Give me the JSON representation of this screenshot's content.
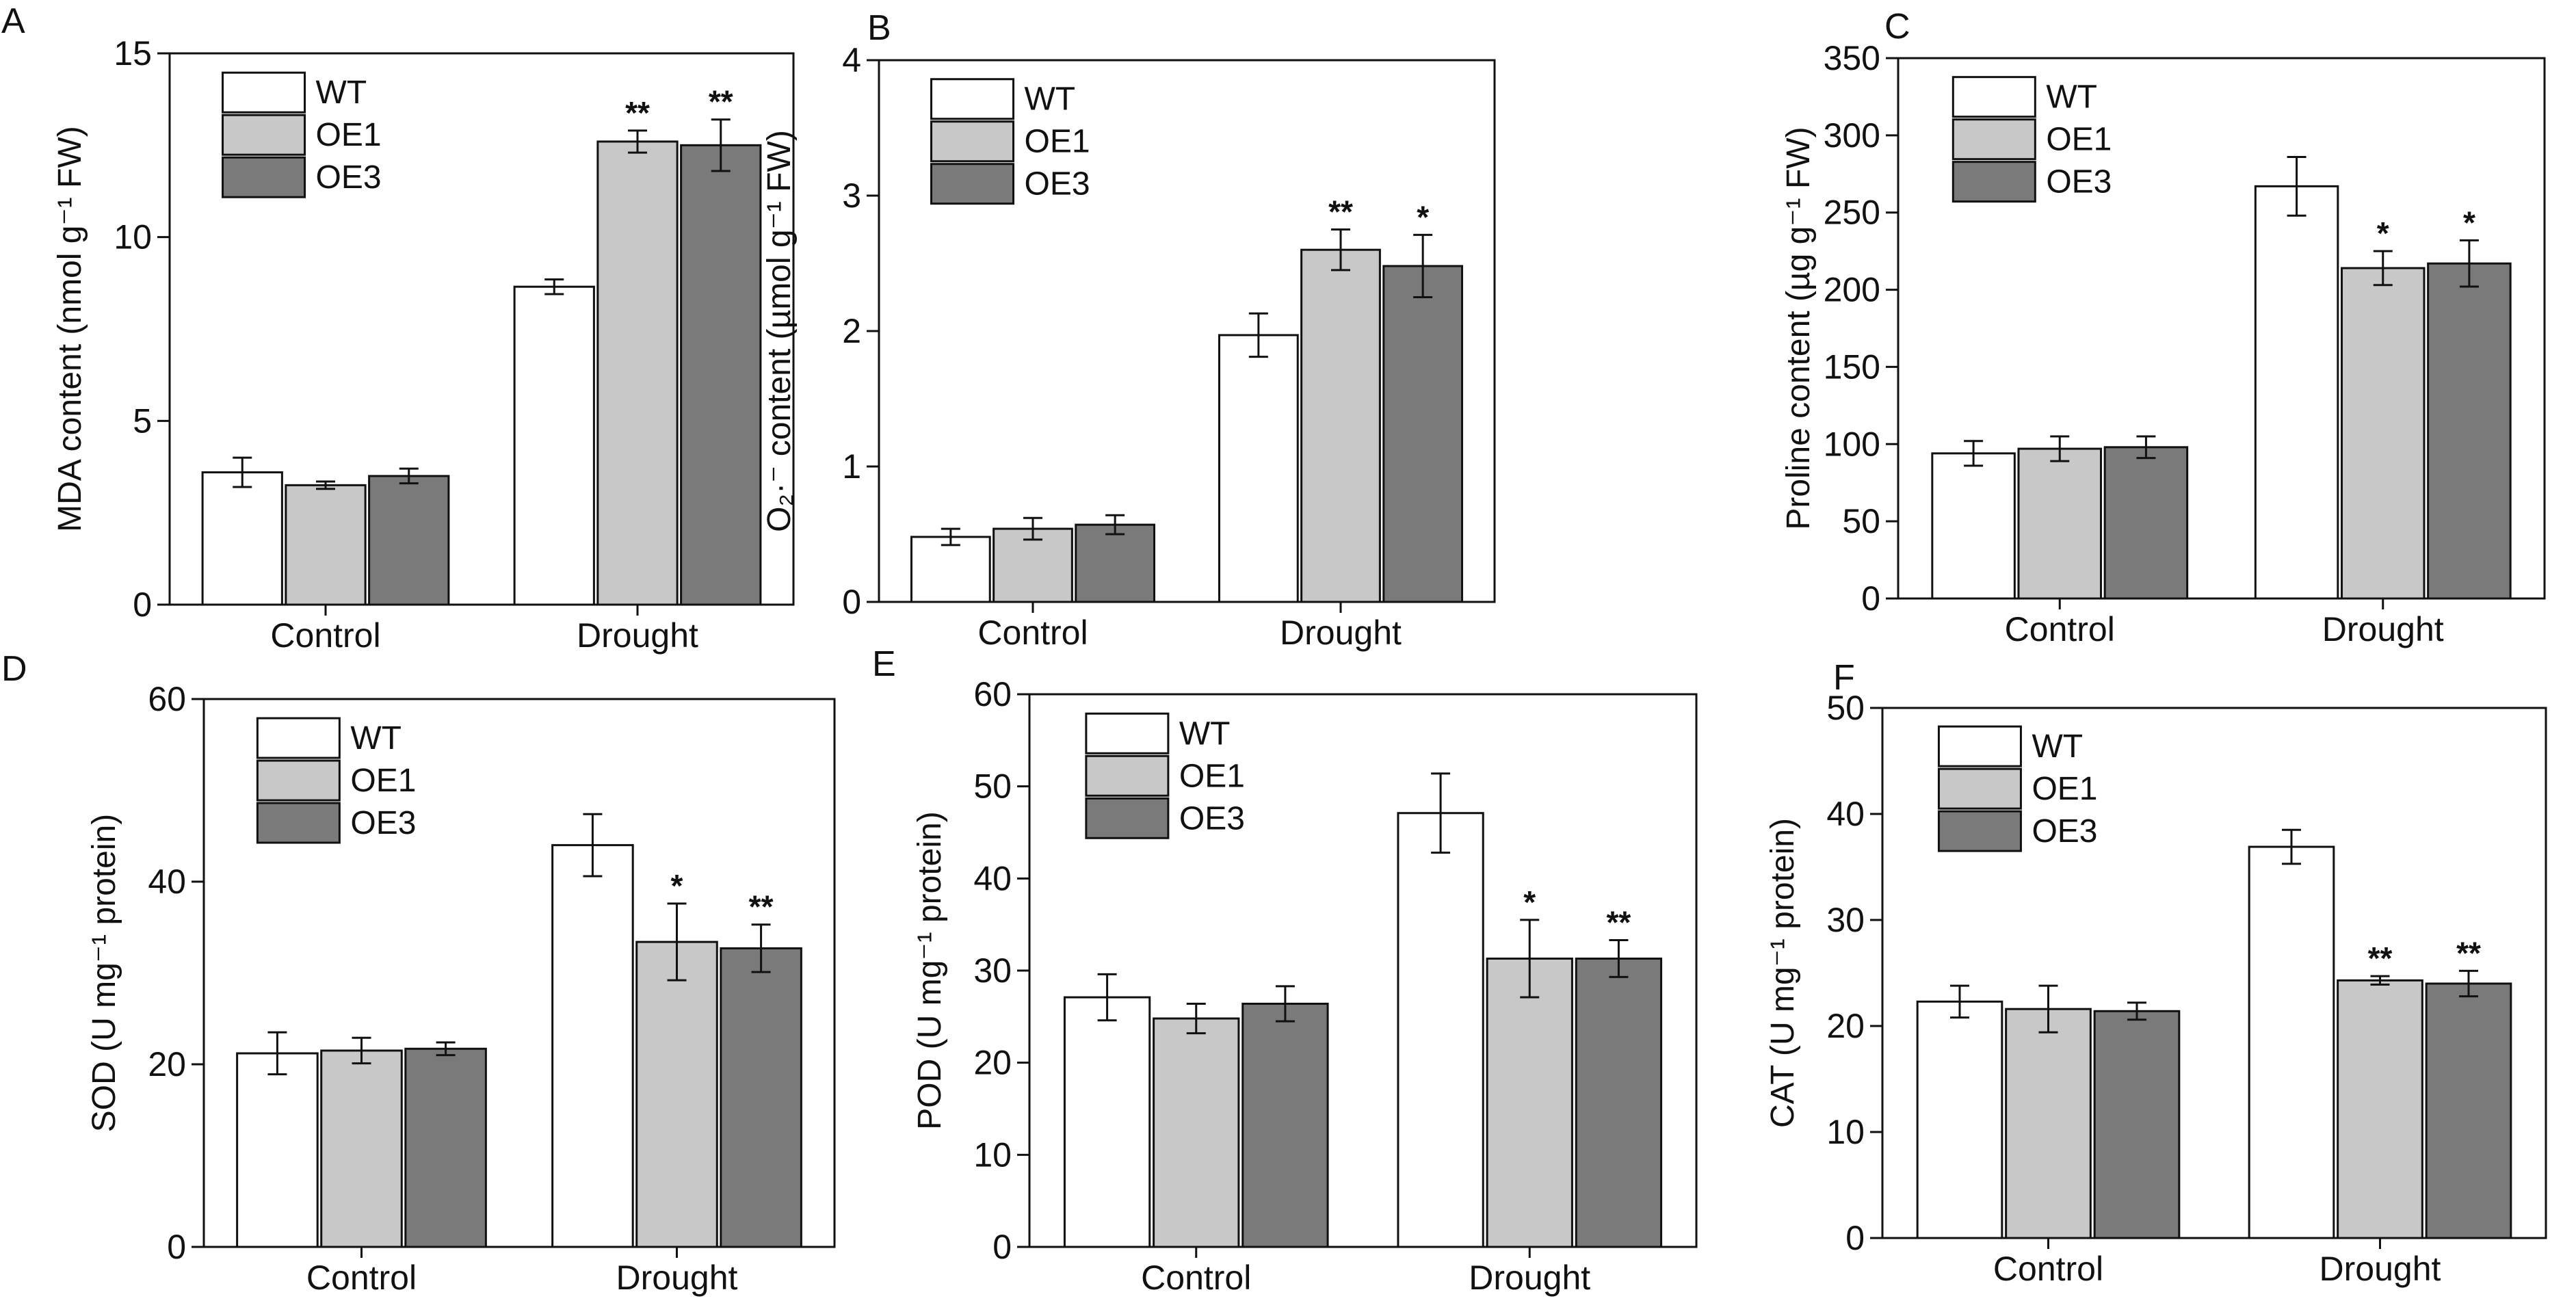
{
  "figure": {
    "title": "",
    "legend_labels": [
      "WT",
      "OE1",
      "OE3"
    ],
    "series_colors": [
      "#ffffff",
      "#c8c8c8",
      "#7a7a7a"
    ]
  },
  "chart_data": [
    {
      "type": "bar",
      "panel_label": "A",
      "title": "",
      "ylabel": "MDA content (nmol g⁻¹ FW)",
      "xlabel": "",
      "categories": [
        "Control",
        "Drought"
      ],
      "ylim": [
        0,
        15
      ],
      "yticks": [
        0,
        5,
        10,
        15
      ],
      "legend_position": "top-left",
      "series": [
        {
          "name": "WT",
          "values": [
            3.6,
            8.65
          ],
          "errors": [
            0.4,
            0.2
          ],
          "significance": [
            "",
            ""
          ]
        },
        {
          "name": "OE1",
          "values": [
            3.25,
            12.6
          ],
          "errors": [
            0.1,
            0.3
          ],
          "significance": [
            "",
            "**"
          ]
        },
        {
          "name": "OE3",
          "values": [
            3.5,
            12.5
          ],
          "errors": [
            0.2,
            0.7
          ],
          "significance": [
            "",
            "**"
          ]
        }
      ]
    },
    {
      "type": "bar",
      "panel_label": "B",
      "title": "",
      "ylabel": "O₂·⁻ content (µmol g⁻¹ FW)",
      "xlabel": "",
      "categories": [
        "Control",
        "Drought"
      ],
      "ylim": [
        0,
        4
      ],
      "yticks": [
        0,
        1,
        2,
        3,
        4
      ],
      "legend_position": "top-left",
      "series": [
        {
          "name": "WT",
          "values": [
            0.48,
            1.97
          ],
          "errors": [
            0.06,
            0.16
          ],
          "significance": [
            "",
            ""
          ]
        },
        {
          "name": "OE1",
          "values": [
            0.54,
            2.6
          ],
          "errors": [
            0.08,
            0.15
          ],
          "significance": [
            "",
            "**"
          ]
        },
        {
          "name": "OE3",
          "values": [
            0.57,
            2.48
          ],
          "errors": [
            0.07,
            0.23
          ],
          "significance": [
            "",
            "*"
          ]
        }
      ]
    },
    {
      "type": "bar",
      "panel_label": "C",
      "title": "",
      "ylabel": "Proline content (µg g⁻¹ FW)",
      "xlabel": "",
      "categories": [
        "Control",
        "Drought"
      ],
      "ylim": [
        0,
        350
      ],
      "yticks": [
        0,
        50,
        100,
        150,
        200,
        250,
        300,
        350
      ],
      "legend_position": "top-left",
      "series": [
        {
          "name": "WT",
          "values": [
            94,
            267
          ],
          "errors": [
            8,
            19
          ],
          "significance": [
            "",
            ""
          ]
        },
        {
          "name": "OE1",
          "values": [
            97,
            214
          ],
          "errors": [
            8,
            11
          ],
          "significance": [
            "",
            "*"
          ]
        },
        {
          "name": "OE3",
          "values": [
            98,
            217
          ],
          "errors": [
            7,
            15
          ],
          "significance": [
            "",
            "*"
          ]
        }
      ]
    },
    {
      "type": "bar",
      "panel_label": "D",
      "title": "",
      "ylabel": "SOD (U mg⁻¹ protein)",
      "xlabel": "",
      "categories": [
        "Control",
        "Drought"
      ],
      "ylim": [
        0,
        60
      ],
      "yticks": [
        0,
        20,
        40,
        60
      ],
      "legend_position": "top-left",
      "series": [
        {
          "name": "WT",
          "values": [
            21.2,
            44
          ],
          "errors": [
            2.3,
            3.4
          ],
          "significance": [
            "",
            ""
          ]
        },
        {
          "name": "OE1",
          "values": [
            21.5,
            33.4
          ],
          "errors": [
            1.4,
            4.2
          ],
          "significance": [
            "",
            "*"
          ]
        },
        {
          "name": "OE3",
          "values": [
            21.7,
            32.7
          ],
          "errors": [
            0.7,
            2.6
          ],
          "significance": [
            "",
            "**"
          ]
        }
      ]
    },
    {
      "type": "bar",
      "panel_label": "E",
      "title": "",
      "ylabel": "POD (U mg⁻¹ protein)",
      "xlabel": "",
      "categories": [
        "Control",
        "Drought"
      ],
      "ylim": [
        0,
        60
      ],
      "yticks": [
        0,
        10,
        20,
        30,
        40,
        50,
        60
      ],
      "legend_position": "top-left",
      "series": [
        {
          "name": "WT",
          "values": [
            27.1,
            47.1
          ],
          "errors": [
            2.5,
            4.3
          ],
          "significance": [
            "",
            ""
          ]
        },
        {
          "name": "OE1",
          "values": [
            24.8,
            31.3
          ],
          "errors": [
            1.6,
            4.2
          ],
          "significance": [
            "",
            "*"
          ]
        },
        {
          "name": "OE3",
          "values": [
            26.4,
            31.3
          ],
          "errors": [
            1.9,
            2.0
          ],
          "significance": [
            "",
            "**"
          ]
        }
      ]
    },
    {
      "type": "bar",
      "panel_label": "F",
      "title": "",
      "ylabel": "CAT (U mg⁻¹ protein)",
      "xlabel": "",
      "categories": [
        "Control",
        "Drought"
      ],
      "ylim": [
        0,
        50
      ],
      "yticks": [
        0,
        10,
        20,
        30,
        40,
        50
      ],
      "legend_position": "top-left",
      "series": [
        {
          "name": "WT",
          "values": [
            22.3,
            36.9
          ],
          "errors": [
            1.5,
            1.6
          ],
          "significance": [
            "",
            ""
          ]
        },
        {
          "name": "OE1",
          "values": [
            21.6,
            24.3
          ],
          "errors": [
            2.2,
            0.4
          ],
          "significance": [
            "",
            "**"
          ]
        },
        {
          "name": "OE3",
          "values": [
            21.4,
            24.0
          ],
          "errors": [
            0.8,
            1.2
          ],
          "significance": [
            "",
            "**"
          ]
        }
      ]
    }
  ]
}
